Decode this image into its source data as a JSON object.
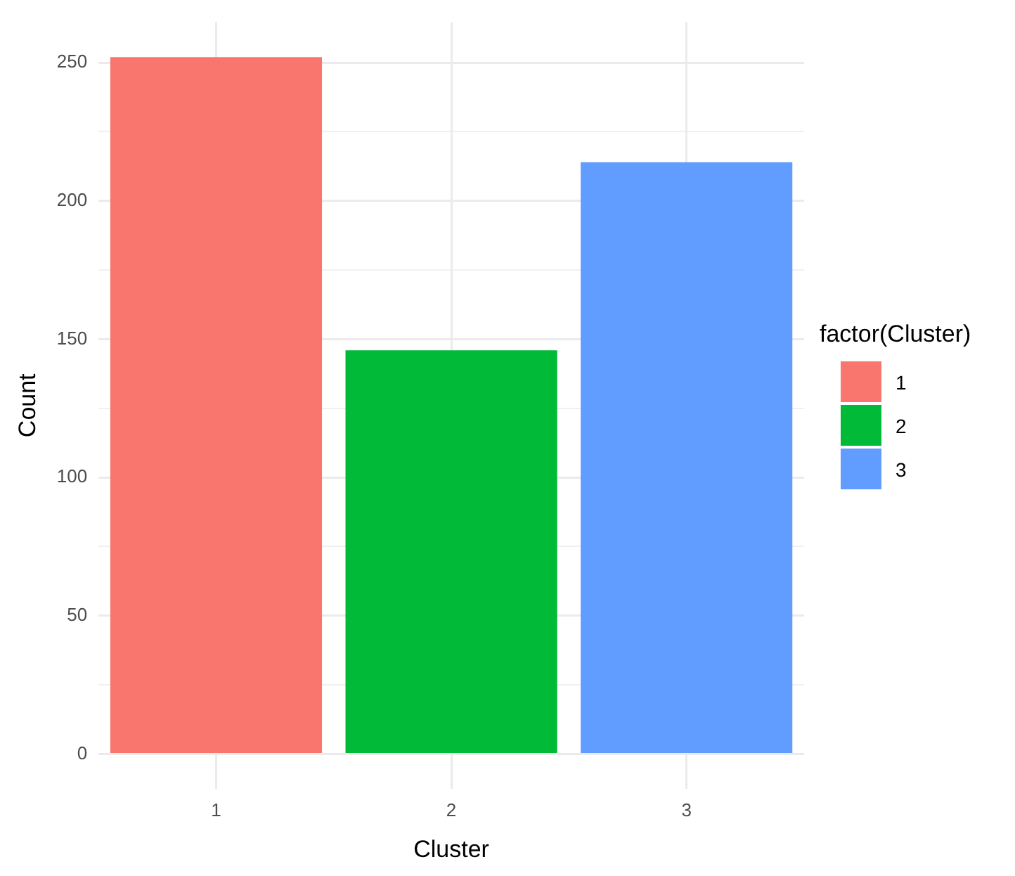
{
  "chart_data": {
    "type": "bar",
    "xlabel": "Cluster",
    "ylabel": "Count",
    "legend_title": "factor(Cluster)",
    "categories": [
      "1",
      "2",
      "3"
    ],
    "series": [
      {
        "name": "1",
        "color": "#f8766d",
        "values": [
          252,
          null,
          null
        ]
      },
      {
        "name": "2",
        "color": "#00ba38",
        "values": [
          null,
          146,
          null
        ]
      },
      {
        "name": "3",
        "color": "#619cff",
        "values": [
          null,
          null,
          214
        ]
      }
    ],
    "ylim": [
      -12.6,
      264.6
    ],
    "yticks": [
      0,
      {
        "value": 25,
        "label": null
      },
      50,
      {
        "value": 75,
        "label": null
      },
      100,
      {
        "value": 125,
        "label": null
      },
      150,
      {
        "value": 175,
        "label": null
      },
      200,
      {
        "value": 225,
        "label": null
      },
      250
    ],
    "grid": true,
    "legend": "right"
  }
}
